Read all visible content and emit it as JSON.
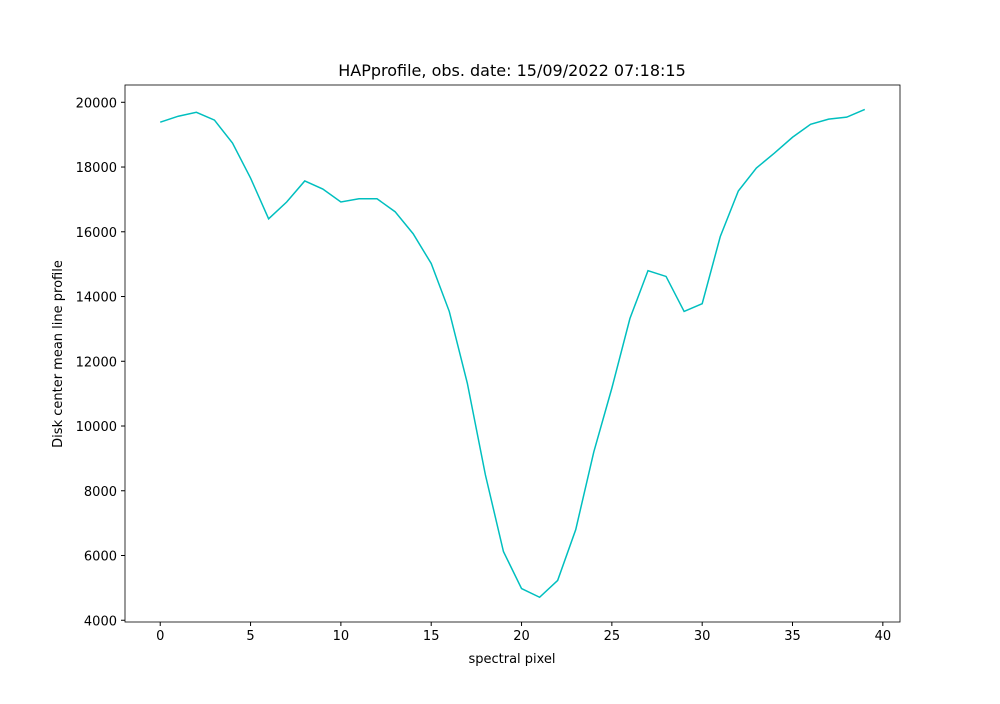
{
  "chart_data": {
    "type": "line",
    "title": "HAPprofile, obs. date: 15/09/2022 07:18:15",
    "x_label": "spectral pixel",
    "y_label": "Disk center mean line profile",
    "x": [
      0,
      1,
      2,
      3,
      4,
      5,
      6,
      7,
      8,
      9,
      10,
      11,
      12,
      13,
      14,
      15,
      16,
      17,
      18,
      19,
      20,
      21,
      22,
      23,
      24,
      25,
      26,
      27,
      28,
      29,
      30,
      31,
      32,
      33,
      34,
      35,
      36,
      37,
      38,
      39
    ],
    "series": [
      {
        "color": "#00bfbf",
        "values": [
          19385,
          19570,
          19690,
          19450,
          18740,
          17660,
          16400,
          16920,
          17570,
          17320,
          16920,
          17020,
          17020,
          16620,
          15940,
          15020,
          13540,
          11320,
          8490,
          6120,
          4980,
          4710,
          5230,
          6800,
          9200,
          11170,
          13320,
          14800,
          14620,
          13540,
          13780,
          15850,
          17260,
          17970,
          18430,
          18920,
          19320,
          19480,
          19540,
          19780
        ]
      }
    ],
    "xlim": [
      -1.95,
      40.95
    ],
    "xticks": [
      0,
      5,
      10,
      15,
      20,
      25,
      30,
      35,
      40
    ],
    "ylim": [
      3946,
      20534
    ],
    "yticks": [
      4000,
      6000,
      8000,
      10000,
      12000,
      14000,
      16000,
      18000,
      20000
    ],
    "grid": false
  }
}
